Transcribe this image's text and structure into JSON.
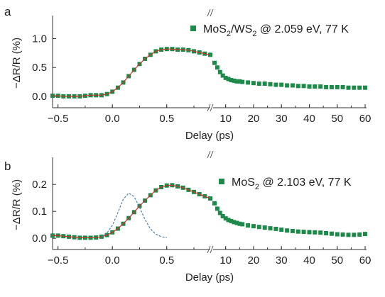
{
  "chart_data": [
    {
      "panel_label": "a",
      "type": "scatter",
      "legend": {
        "marker_color": "#1e8a4a",
        "text": "MoS2/WS2 @ 2.059 eV, 77 K",
        "base": "MoS",
        "sub1": "2",
        "mid": "/WS",
        "sub2": "2",
        "tail": " @ 2.059 eV, 77 K"
      },
      "xlabel": "Delay (ps)",
      "ylabel": "−ΔR/R (%)",
      "ylim": [
        -0.05,
        1.35
      ],
      "yticks": [
        0.0,
        0.5,
        1.0
      ],
      "ytick_labels": [
        "0.0",
        "0.5",
        "1.0"
      ],
      "x_left_range": [
        -0.55,
        0.9
      ],
      "x_left_ticks": [
        -0.5,
        0.0,
        0.5
      ],
      "x_left_tick_labels": [
        "−0.5",
        "0.0",
        "0.5"
      ],
      "x_right_range": [
        5.5,
        60.5
      ],
      "x_right_ticks": [
        10,
        20,
        30,
        40,
        50,
        60
      ],
      "x_right_tick_labels": [
        "10",
        "20",
        "30",
        "40",
        "50",
        "60"
      ],
      "series": [
        {
          "segment": "short",
          "color": "#1e8a4a",
          "fit_color": "#c0392b",
          "points": [
            [
              -0.55,
              0.01
            ],
            [
              -0.5,
              0.01
            ],
            [
              -0.45,
              0.0
            ],
            [
              -0.4,
              0.0
            ],
            [
              -0.35,
              0.0
            ],
            [
              -0.3,
              0.0
            ],
            [
              -0.25,
              0.01
            ],
            [
              -0.2,
              0.02
            ],
            [
              -0.15,
              0.02
            ],
            [
              -0.1,
              0.02
            ],
            [
              -0.05,
              0.04
            ],
            [
              0.0,
              0.08
            ],
            [
              0.05,
              0.15
            ],
            [
              0.1,
              0.24
            ],
            [
              0.15,
              0.35
            ],
            [
              0.2,
              0.46
            ],
            [
              0.25,
              0.56
            ],
            [
              0.3,
              0.65
            ],
            [
              0.35,
              0.72
            ],
            [
              0.4,
              0.78
            ],
            [
              0.45,
              0.81
            ],
            [
              0.5,
              0.82
            ],
            [
              0.55,
              0.82
            ],
            [
              0.6,
              0.81
            ],
            [
              0.65,
              0.81
            ],
            [
              0.7,
              0.8
            ],
            [
              0.75,
              0.78
            ],
            [
              0.8,
              0.76
            ],
            [
              0.85,
              0.74
            ],
            [
              0.9,
              0.72
            ]
          ]
        },
        {
          "segment": "long",
          "color": "#1e8a4a",
          "points": [
            [
              6,
              0.58
            ],
            [
              7,
              0.5
            ],
            [
              8,
              0.42
            ],
            [
              9,
              0.36
            ],
            [
              10,
              0.32
            ],
            [
              11,
              0.3
            ],
            [
              12,
              0.28
            ],
            [
              13,
              0.27
            ],
            [
              14,
              0.26
            ],
            [
              15,
              0.26
            ],
            [
              16,
              0.25
            ],
            [
              18,
              0.24
            ],
            [
              20,
              0.23
            ],
            [
              22,
              0.22
            ],
            [
              24,
              0.22
            ],
            [
              26,
              0.21
            ],
            [
              28,
              0.2
            ],
            [
              30,
              0.2
            ],
            [
              32,
              0.19
            ],
            [
              34,
              0.19
            ],
            [
              36,
              0.18
            ],
            [
              38,
              0.18
            ],
            [
              40,
              0.17
            ],
            [
              42,
              0.17
            ],
            [
              44,
              0.17
            ],
            [
              46,
              0.16
            ],
            [
              48,
              0.16
            ],
            [
              50,
              0.16
            ],
            [
              52,
              0.16
            ],
            [
              54,
              0.15
            ],
            [
              56,
              0.15
            ],
            [
              58,
              0.15
            ],
            [
              60,
              0.15
            ]
          ]
        }
      ]
    },
    {
      "panel_label": "b",
      "type": "scatter",
      "legend": {
        "marker_color": "#1e8a4a",
        "text": "MoS2 @ 2.103 eV, 77 K",
        "base": "MoS",
        "sub1": "2",
        "mid": "",
        "sub2": "",
        "tail": " @ 2.103 eV, 77 K"
      },
      "xlabel": "Delay (ps)",
      "ylabel": "−ΔR/R (%)",
      "ylim": [
        -0.01,
        0.29
      ],
      "yticks": [
        0.0,
        0.1,
        0.2
      ],
      "ytick_labels": [
        "0.0",
        "0.1",
        "0.2"
      ],
      "x_left_range": [
        -0.55,
        0.9
      ],
      "x_left_ticks": [
        -0.5,
        0.0,
        0.5
      ],
      "x_left_tick_labels": [
        "−0.5",
        "0.0",
        "0.5"
      ],
      "x_right_range": [
        5.5,
        60.5
      ],
      "x_right_ticks": [
        10,
        20,
        30,
        40,
        50,
        60
      ],
      "x_right_tick_labels": [
        "10",
        "20",
        "30",
        "40",
        "50",
        "60"
      ],
      "series": [
        {
          "segment": "short",
          "color": "#1e8a4a",
          "fit_color": "#c0392b",
          "points": [
            [
              -0.55,
              0.01
            ],
            [
              -0.5,
              0.01
            ],
            [
              -0.45,
              0.008
            ],
            [
              -0.4,
              0.006
            ],
            [
              -0.35,
              0.004
            ],
            [
              -0.3,
              0.002
            ],
            [
              -0.25,
              0.002
            ],
            [
              -0.2,
              0.002
            ],
            [
              -0.15,
              0.003
            ],
            [
              -0.1,
              0.006
            ],
            [
              -0.05,
              0.012
            ],
            [
              0.0,
              0.022
            ],
            [
              0.05,
              0.036
            ],
            [
              0.1,
              0.054
            ],
            [
              0.15,
              0.075
            ],
            [
              0.2,
              0.097
            ],
            [
              0.25,
              0.12
            ],
            [
              0.3,
              0.14
            ],
            [
              0.35,
              0.16
            ],
            [
              0.4,
              0.178
            ],
            [
              0.45,
              0.19
            ],
            [
              0.5,
              0.196
            ],
            [
              0.55,
              0.197
            ],
            [
              0.6,
              0.193
            ],
            [
              0.65,
              0.188
            ],
            [
              0.7,
              0.18
            ],
            [
              0.75,
              0.172
            ],
            [
              0.8,
              0.164
            ],
            [
              0.85,
              0.156
            ],
            [
              0.9,
              0.148
            ]
          ]
        },
        {
          "segment": "long",
          "color": "#1e8a4a",
          "points": [
            [
              6,
              0.13
            ],
            [
              7,
              0.11
            ],
            [
              8,
              0.094
            ],
            [
              9,
              0.082
            ],
            [
              10,
              0.074
            ],
            [
              11,
              0.068
            ],
            [
              12,
              0.064
            ],
            [
              13,
              0.06
            ],
            [
              14,
              0.057
            ],
            [
              15,
              0.054
            ],
            [
              16,
              0.052
            ],
            [
              18,
              0.048
            ],
            [
              20,
              0.045
            ],
            [
              22,
              0.042
            ],
            [
              24,
              0.04
            ],
            [
              26,
              0.037
            ],
            [
              28,
              0.035
            ],
            [
              30,
              0.032
            ],
            [
              32,
              0.029
            ],
            [
              34,
              0.027
            ],
            [
              36,
              0.025
            ],
            [
              38,
              0.024
            ],
            [
              40,
              0.023
            ],
            [
              42,
              0.022
            ],
            [
              44,
              0.021
            ],
            [
              46,
              0.019
            ],
            [
              48,
              0.017
            ],
            [
              50,
              0.015
            ],
            [
              52,
              0.014
            ],
            [
              54,
              0.013
            ],
            [
              56,
              0.013
            ],
            [
              58,
              0.014
            ],
            [
              60,
              0.016
            ]
          ]
        },
        {
          "segment": "short",
          "name_hidden": true,
          "style": "dashed",
          "color": "#4f7ea8",
          "points": [
            [
              -0.1,
              0.005
            ],
            [
              -0.05,
              0.02
            ],
            [
              0.0,
              0.048
            ],
            [
              0.05,
              0.095
            ],
            [
              0.1,
              0.145
            ],
            [
              0.15,
              0.168
            ],
            [
              0.2,
              0.155
            ],
            [
              0.25,
              0.115
            ],
            [
              0.3,
              0.07
            ],
            [
              0.35,
              0.035
            ],
            [
              0.4,
              0.015
            ],
            [
              0.45,
              0.006
            ],
            [
              0.5,
              0.002
            ]
          ]
        }
      ]
    }
  ]
}
